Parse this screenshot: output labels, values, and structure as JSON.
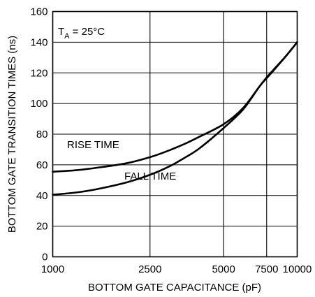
{
  "chart_data": {
    "type": "line",
    "title": "",
    "xlabel": "BOTTOM GATE CAPACITANCE (pF)",
    "ylabel": "BOTTOM GATE TRANSITION TIMES (ns)",
    "x_ticks": [
      1000,
      2500,
      5000,
      7500,
      10000
    ],
    "y_ticks": [
      0,
      20,
      40,
      60,
      80,
      100,
      120,
      140,
      160
    ],
    "ylim": [
      0,
      160
    ],
    "x_scale": "log",
    "xlim": [
      1000,
      10000
    ],
    "grid": true,
    "annotation": {
      "base": "T",
      "subscript": "A",
      "rest": " = 25°C"
    },
    "series": [
      {
        "name": "RISE TIME",
        "x": [
          1000,
          1250,
          1500,
          2000,
          2500,
          3000,
          3500,
          4000,
          5000,
          6000,
          7000,
          7500,
          8000,
          9000,
          10000
        ],
        "y": [
          55.5,
          56.5,
          58,
          61,
          65,
          69.5,
          74,
          78.5,
          86.5,
          97,
          111,
          117,
          122,
          131,
          140
        ]
      },
      {
        "name": "FALL TIME",
        "x": [
          1000,
          1250,
          1500,
          2000,
          2500,
          3000,
          3500,
          4000,
          5000,
          6000,
          7000,
          7500,
          8000,
          9000,
          10000
        ],
        "y": [
          40.5,
          42,
          44,
          48.5,
          53.5,
          59,
          65,
          71,
          84,
          96,
          111,
          116.5,
          121.5,
          131,
          140
        ]
      }
    ]
  }
}
